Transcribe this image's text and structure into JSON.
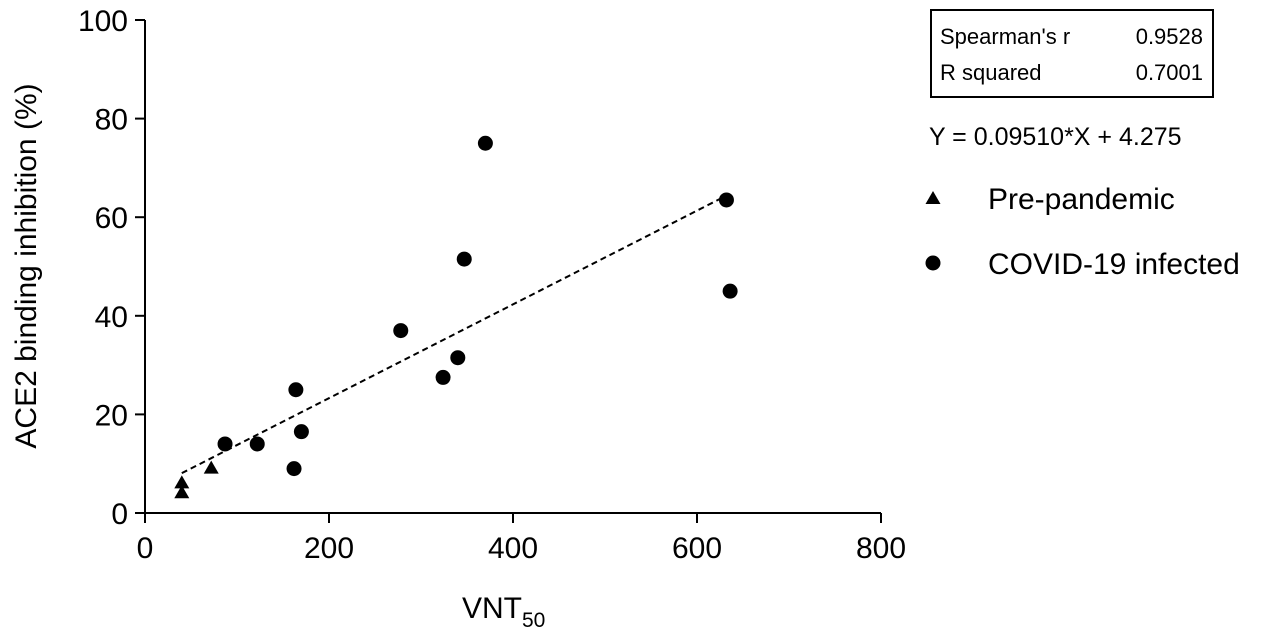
{
  "chart_data": {
    "type": "scatter",
    "xlabel": "VNT",
    "xlabel_sub": "50",
    "ylabel": "ACE2 binding inhibition (%)",
    "xlim": [
      0,
      800
    ],
    "ylim": [
      0,
      100
    ],
    "xticks": [
      0,
      200,
      400,
      600,
      800
    ],
    "yticks": [
      0,
      20,
      40,
      60,
      80,
      100
    ],
    "grid": false,
    "series": [
      {
        "name": "Pre-pandemic",
        "marker": "triangle",
        "color": "#000000",
        "points": [
          [
            40,
            6
          ],
          [
            40,
            4
          ],
          [
            72,
            9
          ]
        ]
      },
      {
        "name": "COVID-19 infected",
        "marker": "circle",
        "color": "#000000",
        "points": [
          [
            87,
            14
          ],
          [
            122,
            14
          ],
          [
            162,
            9
          ],
          [
            164,
            25
          ],
          [
            170,
            16.5
          ],
          [
            278,
            37
          ],
          [
            324,
            27.5
          ],
          [
            340,
            31.5
          ],
          [
            347,
            51.5
          ],
          [
            370,
            75
          ],
          [
            632,
            63.5
          ],
          [
            636,
            45
          ]
        ]
      }
    ],
    "fit": {
      "slope": 0.0951,
      "intercept": 4.275,
      "x_range": [
        40,
        632
      ],
      "style": "dashed"
    },
    "stats": [
      {
        "label": "Spearman's r",
        "value": "0.9528"
      },
      {
        "label": "R squared",
        "value": "0.7001"
      }
    ],
    "equation": "Y = 0.09510*X + 4.275",
    "legend_position": "right"
  }
}
